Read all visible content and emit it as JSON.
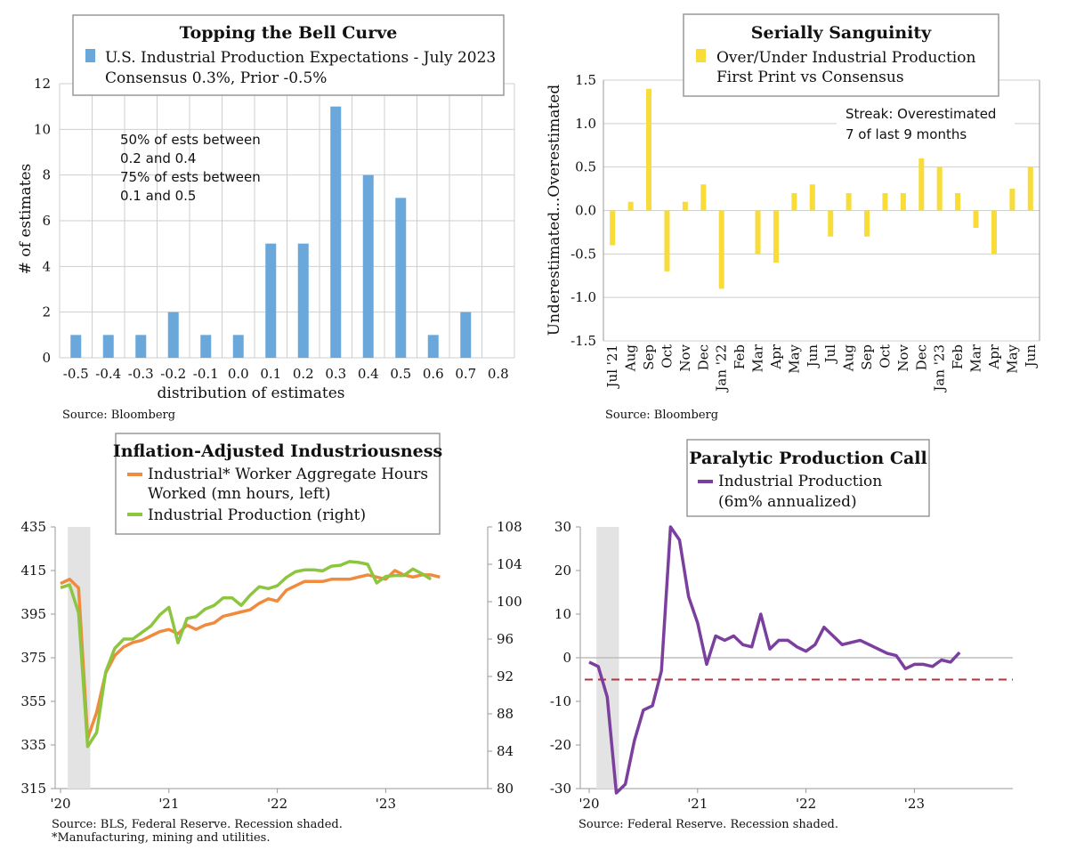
{
  "chart_data": [
    {
      "type": "bar",
      "title": "Topping the Bell Curve",
      "legend": [
        "U.S. Industrial Production Expectations - July 2023",
        "Consensus 0.3%, Prior -0.5%"
      ],
      "xlabel": "distribution of estimates",
      "ylabel": "# of estimates",
      "categories": [
        "-0.5",
        "-0.4",
        "-0.3",
        "-0.2",
        "-0.1",
        "0.0",
        "0.1",
        "0.2",
        "0.3",
        "0.4",
        "0.5",
        "0.6",
        "0.7",
        "0.8"
      ],
      "values": [
        1,
        1,
        1,
        2,
        1,
        1,
        5,
        5,
        11,
        8,
        7,
        1,
        2,
        0
      ],
      "ylim": [
        0,
        12
      ],
      "yticks": [
        "0",
        "2",
        "4",
        "6",
        "8",
        "10",
        "12"
      ],
      "annotation": [
        "50% of ests between",
        "0.2 and 0.4",
        "75% of ests between",
        " 0.1 and 0.5"
      ],
      "color": "#6aa8dc",
      "source": "Source: Bloomberg",
      "grid": true
    },
    {
      "type": "bar",
      "title": "Serially Sanguinity",
      "legend": [
        "Over/Under Industrial Production",
        "First Print vs Consensus"
      ],
      "ylabel": "Underestimated...Overestimated",
      "categories": [
        "Jul '21",
        "Aug",
        "Sep",
        "Oct",
        "Nov",
        "Dec",
        "Jan '22",
        "Feb",
        "Mar",
        "Apr",
        "May",
        "Jun",
        "Jul",
        "Aug",
        "Sep",
        "Oct",
        "Nov",
        "Dec",
        "Jan '23",
        "Feb",
        "Mar",
        "Apr",
        "May",
        "Jun"
      ],
      "values": [
        -0.4,
        0.1,
        1.4,
        -0.7,
        0.1,
        0.3,
        -0.9,
        0.0,
        -0.5,
        -0.6,
        0.2,
        0.3,
        -0.3,
        0.2,
        -0.3,
        0.2,
        0.2,
        0.6,
        0.5,
        0.2,
        -0.2,
        -0.5,
        0.25,
        0.5
      ],
      "ylim": [
        -1.5,
        1.5
      ],
      "yticks": [
        "1.5",
        "1.0",
        "0.5",
        "0.0",
        "-0.5",
        "-1.0",
        "-1.5"
      ],
      "annotation": [
        "Streak: Overestimated",
        "7 of last 9 months"
      ],
      "color": "#f7dc3a",
      "source": "Source: Bloomberg",
      "grid": true
    },
    {
      "type": "line",
      "title": "Inflation-Adjusted Industriousness",
      "xticks": [
        "'20",
        "'21",
        "'22",
        "'23"
      ],
      "ylim_left": [
        315,
        435
      ],
      "yticks_left": [
        "435",
        "415",
        "395",
        "375",
        "355",
        "335",
        "315"
      ],
      "ylim_right": [
        80,
        108
      ],
      "yticks_right": [
        "108",
        "104",
        "100",
        "96",
        "92",
        "88",
        "84",
        "80"
      ],
      "recession": [
        "2020-02",
        "2020-04"
      ],
      "series": [
        {
          "name": "Industrial* Worker Aggregate Hours Worked (mn hours, left)",
          "color": "#f08a3c",
          "axis": "left",
          "x": [
            "2020-01",
            "2020-02",
            "2020-03",
            "2020-04",
            "2020-05",
            "2020-06",
            "2020-07",
            "2020-08",
            "2020-09",
            "2020-10",
            "2020-11",
            "2020-12",
            "2021-01",
            "2021-02",
            "2021-03",
            "2021-04",
            "2021-05",
            "2021-06",
            "2021-07",
            "2021-08",
            "2021-09",
            "2021-10",
            "2021-11",
            "2021-12",
            "2022-01",
            "2022-02",
            "2022-03",
            "2022-04",
            "2022-05",
            "2022-06",
            "2022-07",
            "2022-08",
            "2022-09",
            "2022-10",
            "2022-11",
            "2022-12",
            "2023-01",
            "2023-02",
            "2023-03",
            "2023-04",
            "2023-05",
            "2023-06",
            "2023-07"
          ],
          "values": [
            409,
            411,
            407,
            338,
            350,
            368,
            376,
            380,
            382,
            383,
            385,
            387,
            388,
            386,
            390,
            388,
            390,
            391,
            394,
            395,
            396,
            397,
            400,
            402,
            401,
            406,
            408,
            410,
            410,
            410,
            411,
            411,
            411,
            412,
            413,
            412,
            411,
            415,
            413,
            412,
            413,
            413,
            412
          ]
        },
        {
          "name": "Industrial Production (right)",
          "color": "#8cc63f",
          "axis": "right",
          "x": [
            "2020-01",
            "2020-02",
            "2020-03",
            "2020-04",
            "2020-05",
            "2020-06",
            "2020-07",
            "2020-08",
            "2020-09",
            "2020-10",
            "2020-11",
            "2020-12",
            "2021-01",
            "2021-02",
            "2021-03",
            "2021-04",
            "2021-05",
            "2021-06",
            "2021-07",
            "2021-08",
            "2021-09",
            "2021-10",
            "2021-11",
            "2021-12",
            "2022-01",
            "2022-02",
            "2022-03",
            "2022-04",
            "2022-05",
            "2022-06",
            "2022-07",
            "2022-08",
            "2022-09",
            "2022-10",
            "2022-11",
            "2022-12",
            "2023-01",
            "2023-02",
            "2023-03",
            "2023-04",
            "2023-05",
            "2023-06"
          ],
          "values": [
            101.5,
            101.8,
            98.8,
            84.5,
            86.0,
            92.5,
            95.0,
            96.0,
            96.0,
            96.7,
            97.4,
            98.6,
            99.4,
            95.6,
            98.2,
            98.4,
            99.2,
            99.6,
            100.4,
            100.4,
            99.6,
            100.7,
            101.6,
            101.4,
            101.7,
            102.6,
            103.2,
            103.4,
            103.4,
            103.3,
            103.8,
            103.9,
            104.3,
            104.2,
            104.0,
            102.0,
            102.7,
            102.8,
            102.8,
            103.5,
            103.0,
            102.4
          ]
        }
      ],
      "source": "Source: BLS, Federal Reserve. Recession shaded.",
      "footnote": "*Manufacturing, mining and utilities."
    },
    {
      "type": "line",
      "title": "Paralytic Production Call",
      "xticks": [
        "'20",
        "'21",
        "'22",
        "'23"
      ],
      "ylim": [
        -30,
        30
      ],
      "yticks": [
        "30",
        "20",
        "10",
        "0",
        "-10",
        "-20",
        "-30"
      ],
      "reference_line": -5,
      "recession": [
        "2020-02",
        "2020-04"
      ],
      "series": [
        {
          "name": "Industrial Production (6m% annualized)",
          "color": "#7b3f9e",
          "x": [
            "2020-01",
            "2020-02",
            "2020-03",
            "2020-04",
            "2020-05",
            "2020-06",
            "2020-07",
            "2020-08",
            "2020-09",
            "2020-10",
            "2020-11",
            "2020-12",
            "2021-01",
            "2021-02",
            "2021-03",
            "2021-04",
            "2021-05",
            "2021-06",
            "2021-07",
            "2021-08",
            "2021-09",
            "2021-10",
            "2021-11",
            "2021-12",
            "2022-01",
            "2022-02",
            "2022-03",
            "2022-04",
            "2022-05",
            "2022-06",
            "2022-07",
            "2022-08",
            "2022-09",
            "2022-10",
            "2022-11",
            "2022-12",
            "2023-01",
            "2023-02",
            "2023-03",
            "2023-04",
            "2023-05",
            "2023-06"
          ],
          "values": [
            -1,
            -2,
            -9,
            -31,
            -29,
            -19,
            -12,
            -11,
            -3,
            30,
            27,
            14,
            8,
            -1.5,
            5,
            4,
            5,
            3,
            2.5,
            10,
            2,
            4,
            4,
            2.5,
            1.5,
            3,
            7,
            5,
            3,
            3.5,
            4,
            3,
            2,
            1,
            0.5,
            -2.5,
            -1.5,
            -1.5,
            -2,
            -0.5,
            -1,
            1.2
          ]
        }
      ],
      "source": "Source: Federal Reserve. Recession shaded."
    }
  ]
}
